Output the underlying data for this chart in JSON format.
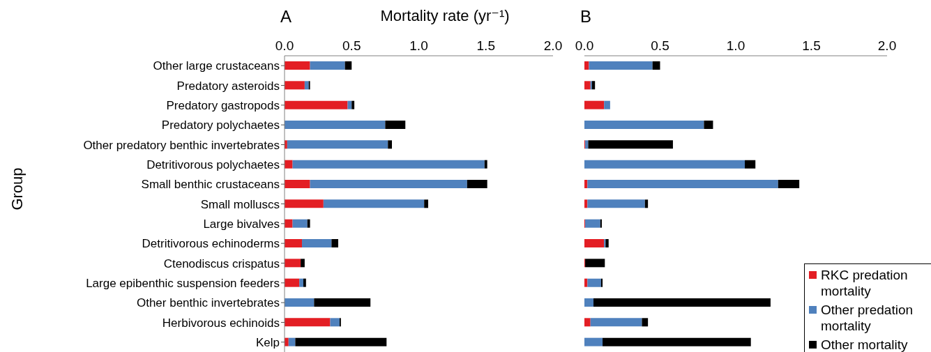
{
  "chart_data": [
    {
      "type": "bar",
      "title": "A",
      "xlabel": "Mortality rate (yr⁻¹)",
      "ylabel": "Group",
      "orientation": "horizontal",
      "stacked": true,
      "legend": false,
      "categories": [
        "Other large crustaceans",
        "Predatory asteroids",
        "Predatory gastropods",
        "Predatory polychaetes",
        "Other predatory benthic invertebrates",
        "Detritivorous polychaetes",
        "Small benthic crustaceans",
        "Small molluscs",
        "Large bivalves",
        "Detritivorous echinoderms",
        "Ctenodiscus crispatus",
        "Large epibenthic suspension feeders",
        "Other benthic invertebrates",
        "Herbivorous echinoids",
        "Kelp"
      ],
      "xlim": [
        0,
        2
      ],
      "xticks": [
        {
          "value": 0,
          "label": "0.0"
        },
        {
          "value": 0.5,
          "label": "0.5"
        },
        {
          "value": 1,
          "label": "1.0"
        },
        {
          "value": 1.5,
          "label": "1.5"
        },
        {
          "value": 2,
          "label": "2.0"
        }
      ],
      "series": [
        {
          "color": "#e31e24",
          "values": [
            0.19,
            0.15,
            0.47,
            null,
            0.02,
            0.06,
            0.19,
            0.29,
            0.06,
            0.13,
            0.12,
            0.11,
            0,
            0.34,
            0.03
          ]
        },
        {
          "color": "#4f81bd",
          "values": [
            0.26,
            0.03,
            0.03,
            0.75,
            0.75,
            1.43,
            1.17,
            0.75,
            0.11,
            0.22,
            0,
            0.03,
            0.22,
            0.07,
            0.05
          ]
        },
        {
          "color": "#000000",
          "values": [
            0.05,
            0.01,
            0.02,
            0.15,
            0.03,
            0.02,
            0.15,
            0.03,
            0.02,
            0.05,
            0.03,
            0.02,
            0.42,
            0.01,
            0.68
          ]
        }
      ]
    },
    {
      "type": "bar",
      "title": "B",
      "orientation": "horizontal",
      "stacked": true,
      "legend": "bottom right",
      "tick_labels": "x",
      "categories": [
        null,
        null,
        null,
        null,
        null,
        null,
        null,
        null,
        null,
        null,
        null,
        null,
        null,
        null,
        null
      ],
      "xlim": [
        0,
        2
      ],
      "xticks": [
        {
          "value": 0,
          "label": "0.0"
        },
        {
          "value": 0.5,
          "label": "0.5"
        },
        {
          "value": 1,
          "label": "1.0"
        },
        {
          "value": 1.5,
          "label": "1.5"
        },
        {
          "value": 2,
          "label": "2.0"
        }
      ],
      "series": [
        {
          "name": "RKC predation mortality",
          "color": "#e31e24",
          "values": [
            0.03,
            0.04,
            0.13,
            0,
            0.005,
            0,
            0.02,
            0.02,
            0.005,
            0.13,
            0.005,
            0.02,
            0,
            0.04,
            0
          ]
        },
        {
          "name": "Other predation mortality",
          "color": "#4f81bd",
          "values": [
            0.42,
            0.01,
            0.04,
            0.79,
            0.02,
            1.06,
            1.26,
            0.38,
            0.1,
            0.01,
            0,
            0.09,
            0.06,
            0.34,
            0.12
          ]
        },
        {
          "name": "Other mortality",
          "color": "#000000",
          "values": [
            0.05,
            0.02,
            0,
            0.06,
            0.56,
            0.07,
            0.14,
            0.02,
            0.01,
            0.02,
            0.13,
            0.01,
            1.17,
            0.04,
            0.98
          ]
        }
      ]
    }
  ]
}
